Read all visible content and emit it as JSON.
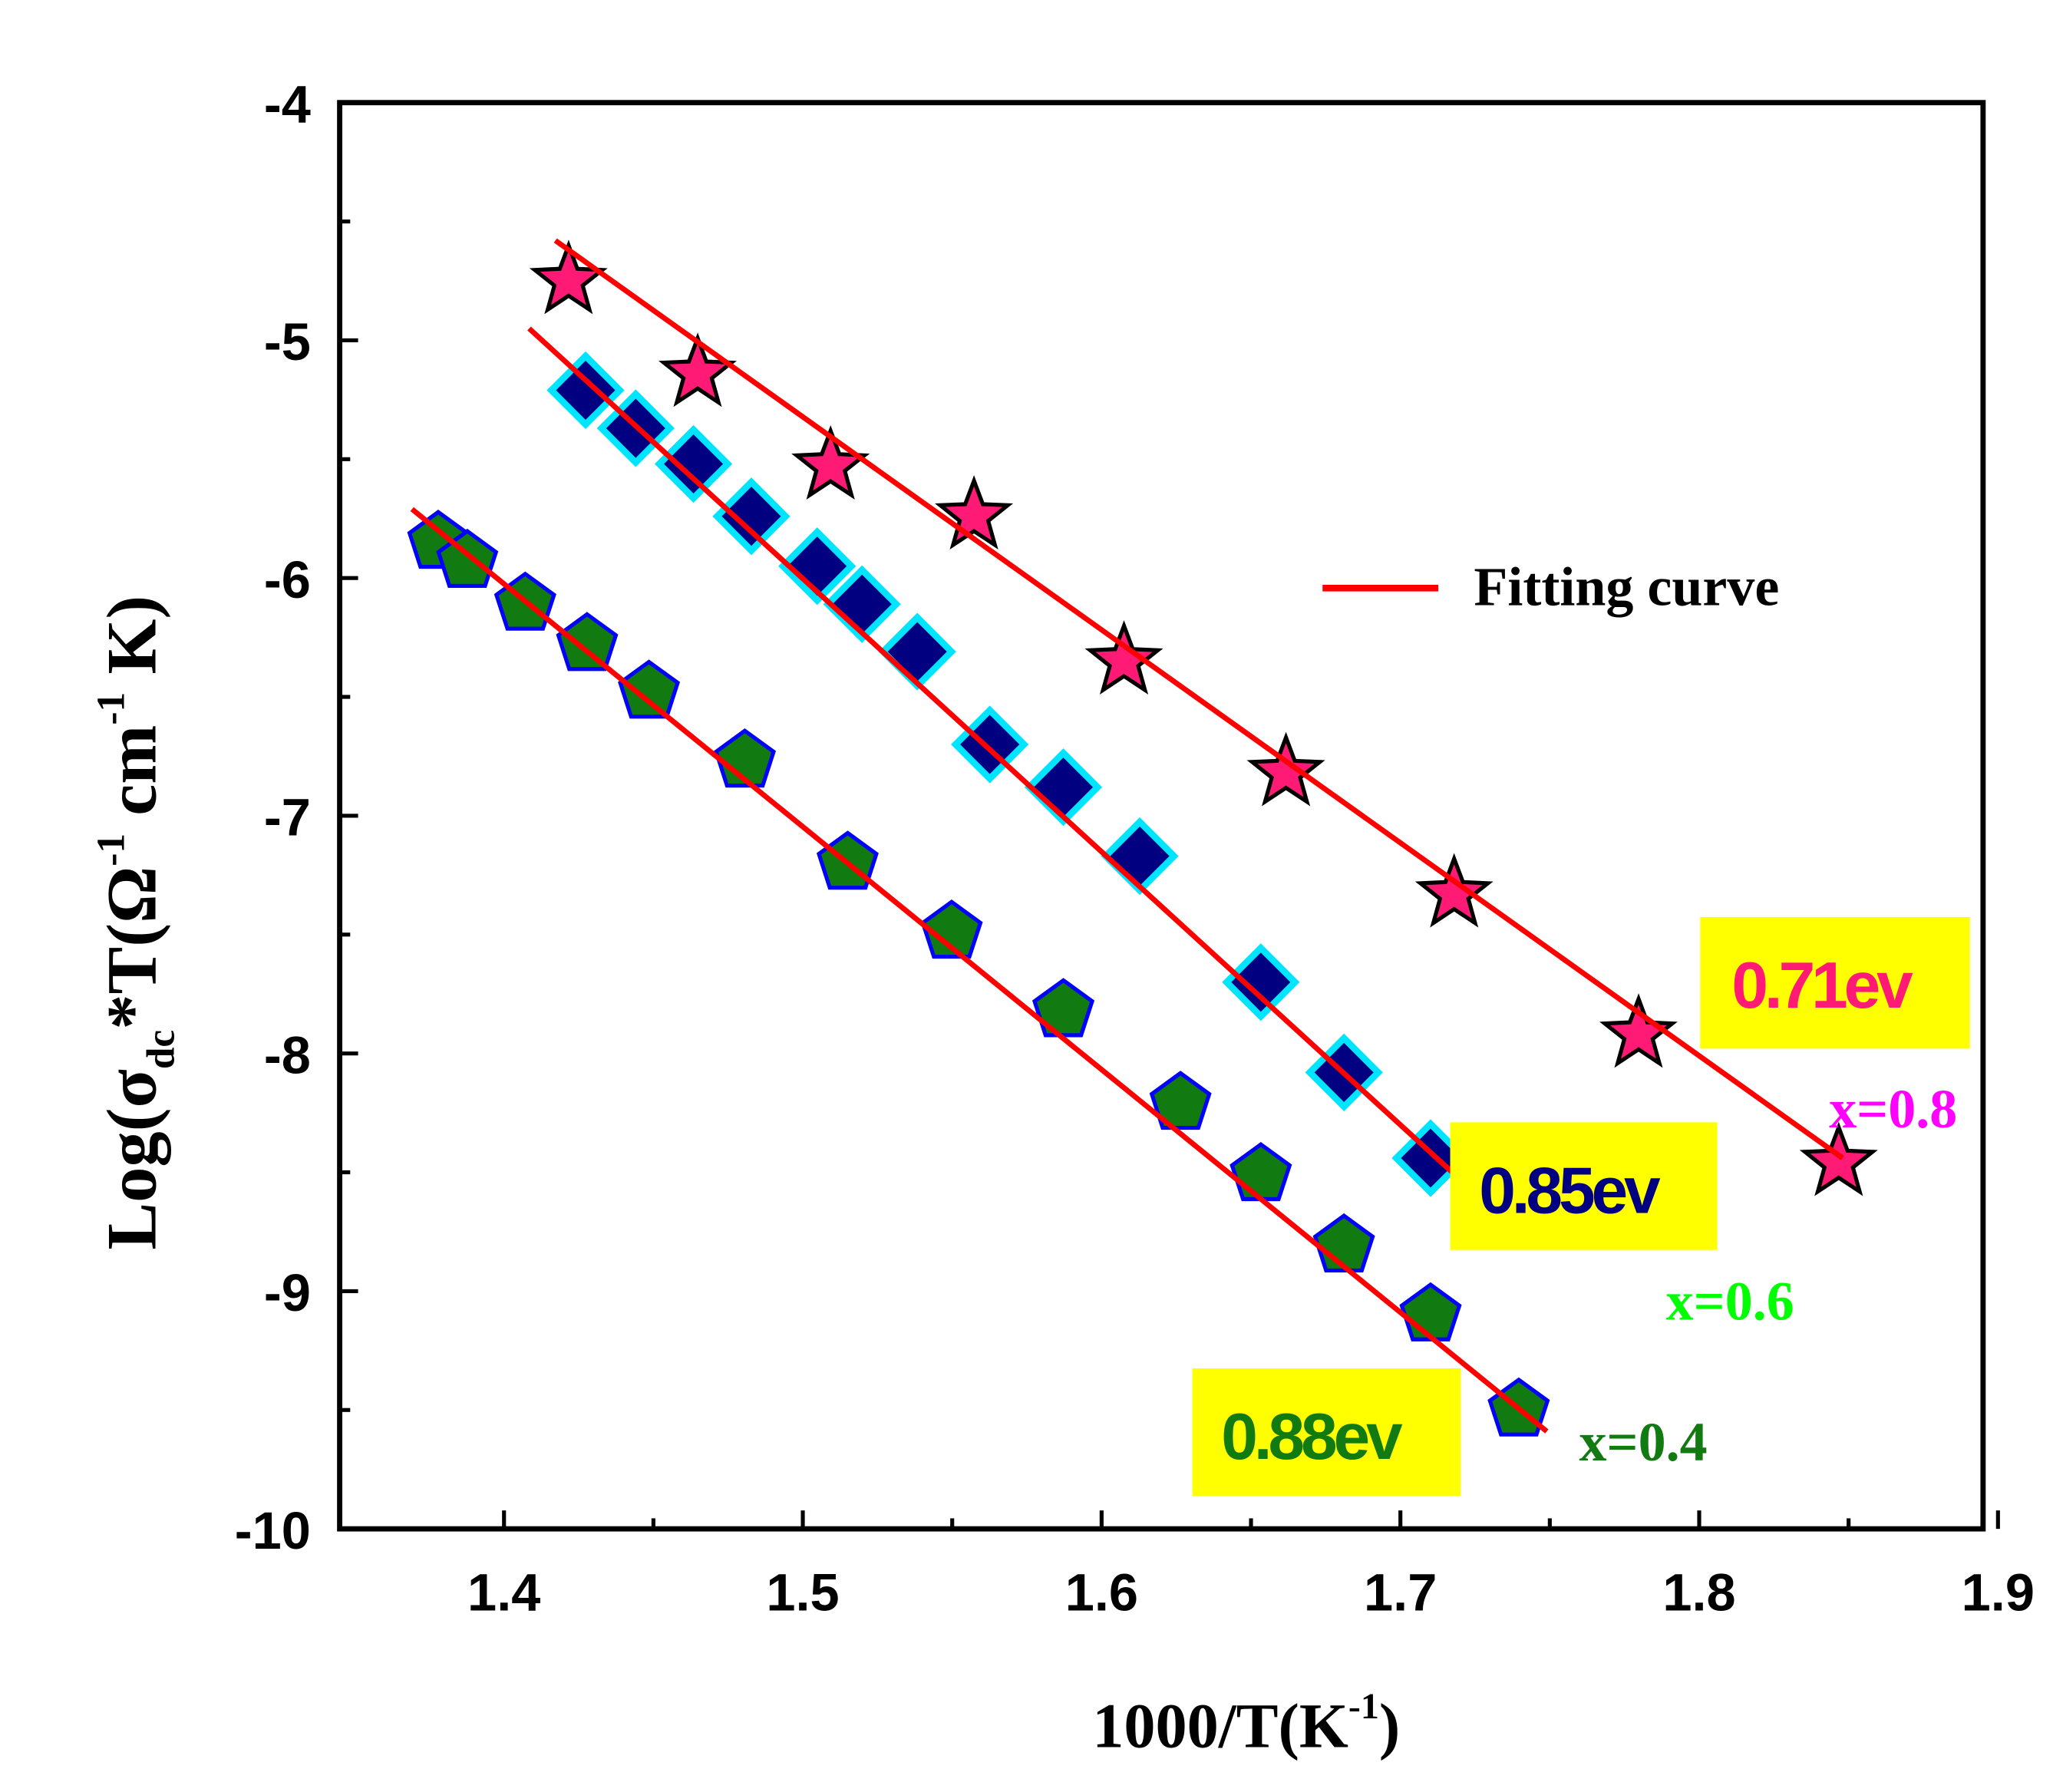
{
  "chart_data": {
    "type": "scatter",
    "xlabel": "1000/T(K",
    "xlabel_sup": "-1",
    "xlabel_close": ")",
    "ylabel_parts": {
      "pre": "Log(σ",
      "sub": "dc",
      "mid": "*T(Ω",
      "sup1": "-1",
      "cm": " cm",
      "sup2": "-1",
      "post": " K)"
    },
    "xlim": [
      1.345,
      1.895
    ],
    "ylim": [
      -10,
      -4
    ],
    "xticks": [
      "1.4",
      "1.5",
      "1.6",
      "1.7",
      "1.8",
      "1.9"
    ],
    "xtick_values": [
      1.4,
      1.5,
      1.6,
      1.7,
      1.8,
      1.9
    ],
    "yticks": [
      "-4",
      "-5",
      "-6",
      "-7",
      "-8",
      "-9",
      "-10"
    ],
    "ytick_values": [
      -4,
      -5,
      -6,
      -7,
      -8,
      -9,
      -10
    ],
    "legend": {
      "label": "Fitting curve",
      "color": "#ff0000",
      "position": "upper-right"
    },
    "series": [
      {
        "name": "x=0.8",
        "marker": "star",
        "fill": "#ff1a75",
        "edge": "#000000",
        "label_color": "#ff00ff",
        "activation_energy": "0.71ev",
        "ea_color": "#ff1a75",
        "x": [
          1.4216,
          1.4648,
          1.5093,
          1.5573,
          1.6075,
          1.6617,
          1.718,
          1.7797,
          1.8467
        ],
        "y": [
          -4.75,
          -5.14,
          -5.53,
          -5.74,
          -6.35,
          -6.82,
          -7.33,
          -7.92,
          -8.46
        ],
        "fit": {
          "x": [
            1.4172,
            1.848
          ],
          "y": [
            -4.58,
            -8.44
          ]
        }
      },
      {
        "name": "x=0.6",
        "marker": "diamond",
        "fill": "#000080",
        "edge": "#00e5ff",
        "label_color": "#00ff00",
        "activation_energy": "0.85ev",
        "ea_color": "#000080",
        "x": [
          1.4273,
          1.4441,
          1.4634,
          1.4828,
          1.5048,
          1.5198,
          1.5383,
          1.5626,
          1.5872,
          1.6128,
          1.6533,
          1.6811,
          1.7101
        ],
        "y": [
          -5.21,
          -5.37,
          -5.52,
          -5.74,
          -5.95,
          -6.11,
          -6.31,
          -6.7,
          -6.88,
          -7.17,
          -7.7,
          -8.08,
          -8.44
        ],
        "fit": {
          "x": [
            1.4084,
            1.7278
          ],
          "y": [
            -4.95,
            -8.62
          ]
        }
      },
      {
        "name": "x=0.4",
        "marker": "pentagon",
        "fill": "#117a11",
        "edge": "#0000ff",
        "label_color": "#117a11",
        "activation_energy": "0.88ev",
        "ea_color": "#117a11",
        "x": [
          1.378,
          1.3877,
          1.4071,
          1.4278,
          1.4485,
          1.4806,
          1.515,
          1.5498,
          1.5872,
          1.6264,
          1.6533,
          1.6811,
          1.7101,
          1.7396
        ],
        "y": [
          -5.85,
          -5.93,
          -6.11,
          -6.28,
          -6.48,
          -6.77,
          -7.2,
          -7.49,
          -7.82,
          -8.21,
          -8.51,
          -8.81,
          -9.1,
          -9.5
        ],
        "fit": {
          "x": [
            1.3692,
            1.749
          ],
          "y": [
            -5.71,
            -9.59
          ]
        }
      }
    ]
  }
}
